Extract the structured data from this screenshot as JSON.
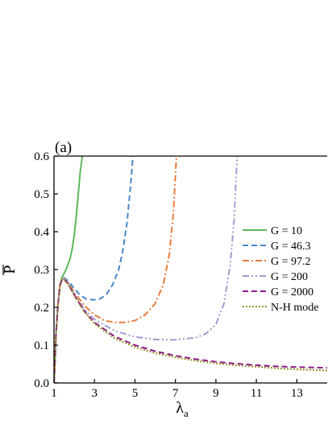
{
  "chart_data": {
    "type": "line",
    "panel_label": "(a)",
    "xlabel": "λ",
    "xlabel_sub": "a",
    "ylabel": "P",
    "xlim": [
      1,
      14.5
    ],
    "ylim": [
      0,
      0.6
    ],
    "xticks": [
      1,
      3,
      5,
      7,
      9,
      11,
      13
    ],
    "yticks": [
      0.0,
      0.1,
      0.2,
      0.3,
      0.4,
      0.5,
      0.6
    ],
    "ytick_labels": [
      "0.0",
      "0.1",
      "0.2",
      "0.3",
      "0.4",
      "0.5",
      "0.6"
    ],
    "grid": false,
    "legend_position": "right",
    "series": [
      {
        "name": "G = 10",
        "color": "#5cb85c",
        "dash": "solid",
        "x": [
          1.0,
          1.05,
          1.1,
          1.2,
          1.3,
          1.4,
          1.5,
          1.6,
          1.7,
          1.8,
          1.9,
          2.0,
          2.1,
          2.2,
          2.3,
          2.4
        ],
        "y": [
          0.0,
          0.06,
          0.13,
          0.21,
          0.26,
          0.28,
          0.29,
          0.3,
          0.315,
          0.33,
          0.355,
          0.39,
          0.44,
          0.5,
          0.56,
          0.6
        ]
      },
      {
        "name": "G = 46.3",
        "color": "#4a86c8",
        "dash": "dash",
        "x": [
          1.0,
          1.05,
          1.1,
          1.2,
          1.3,
          1.4,
          1.5,
          1.7,
          2.0,
          2.3,
          2.6,
          3.0,
          3.3,
          3.6,
          3.9,
          4.2,
          4.4,
          4.6,
          4.8,
          4.9
        ],
        "y": [
          0.0,
          0.06,
          0.13,
          0.21,
          0.26,
          0.275,
          0.278,
          0.27,
          0.25,
          0.232,
          0.222,
          0.22,
          0.223,
          0.235,
          0.26,
          0.3,
          0.35,
          0.42,
          0.53,
          0.6
        ]
      },
      {
        "name": "G = 97.2",
        "color": "#e87a3a",
        "dash": "dashdot",
        "x": [
          1.0,
          1.05,
          1.1,
          1.2,
          1.3,
          1.4,
          1.5,
          1.7,
          2.0,
          2.5,
          3.0,
          3.5,
          4.0,
          4.5,
          5.0,
          5.5,
          6.0,
          6.4,
          6.7,
          6.9,
          7.05
        ],
        "y": [
          0.0,
          0.06,
          0.13,
          0.21,
          0.26,
          0.275,
          0.276,
          0.265,
          0.24,
          0.205,
          0.18,
          0.165,
          0.16,
          0.16,
          0.165,
          0.18,
          0.21,
          0.26,
          0.34,
          0.45,
          0.6
        ]
      },
      {
        "name": "G = 200",
        "color": "#a49bd0",
        "dash": "dashdotdot",
        "x": [
          1.0,
          1.05,
          1.1,
          1.2,
          1.3,
          1.4,
          1.5,
          1.7,
          2.0,
          2.5,
          3.0,
          4.0,
          5.0,
          6.0,
          7.0,
          8.0,
          8.5,
          9.0,
          9.4,
          9.7,
          9.9,
          10.05
        ],
        "y": [
          0.0,
          0.06,
          0.13,
          0.21,
          0.26,
          0.274,
          0.275,
          0.263,
          0.235,
          0.195,
          0.168,
          0.138,
          0.122,
          0.115,
          0.114,
          0.12,
          0.13,
          0.155,
          0.21,
          0.31,
          0.43,
          0.6
        ]
      },
      {
        "name": "G = 2000",
        "color": "#8b1a8b",
        "dash": "dash",
        "x": [
          1.0,
          1.05,
          1.1,
          1.2,
          1.3,
          1.4,
          1.5,
          1.7,
          2.0,
          2.5,
          3.0,
          4.0,
          5.0,
          6.0,
          7.0,
          8.0,
          9.0,
          10.0,
          11.0,
          12.0,
          13.0,
          14.5
        ],
        "y": [
          0.0,
          0.06,
          0.13,
          0.21,
          0.26,
          0.273,
          0.274,
          0.262,
          0.233,
          0.19,
          0.16,
          0.123,
          0.1,
          0.084,
          0.072,
          0.063,
          0.056,
          0.051,
          0.047,
          0.044,
          0.042,
          0.04
        ]
      },
      {
        "name": "N-H mode",
        "color": "#8f8a1e",
        "dash": "dot",
        "x": [
          1.0,
          1.05,
          1.1,
          1.2,
          1.3,
          1.4,
          1.5,
          1.7,
          2.0,
          2.5,
          3.0,
          4.0,
          5.0,
          6.0,
          7.0,
          8.0,
          9.0,
          10.0,
          11.0,
          12.0,
          13.0,
          14.5
        ],
        "y": [
          0.0,
          0.06,
          0.13,
          0.21,
          0.26,
          0.273,
          0.274,
          0.261,
          0.232,
          0.188,
          0.157,
          0.118,
          0.095,
          0.079,
          0.068,
          0.059,
          0.052,
          0.047,
          0.043,
          0.039,
          0.036,
          0.033
        ]
      }
    ]
  }
}
